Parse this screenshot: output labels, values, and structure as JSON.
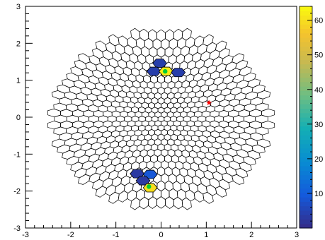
{
  "chart_data": {
    "type": "heatmap",
    "title": "",
    "xlabel": "",
    "ylabel": "",
    "xlim": [
      -3,
      3
    ],
    "ylim": [
      -3,
      3
    ],
    "x_ticks": [
      "-3",
      "-2",
      "-1",
      "0",
      "1",
      "2",
      "3"
    ],
    "y_ticks": [
      "-3",
      "-2",
      "-1",
      "0",
      "1",
      "2",
      "3"
    ],
    "colorbar": {
      "range": [
        0,
        64
      ],
      "ticks": [
        "10",
        "20",
        "30",
        "40",
        "50",
        "60"
      ],
      "placement": "right"
    },
    "grid": false,
    "cells": [
      {
        "x": -0.03,
        "y": 1.46,
        "value": 4
      },
      {
        "x": -0.16,
        "y": 1.24,
        "value": 4
      },
      {
        "x": 0.11,
        "y": 1.24,
        "value": 62
      },
      {
        "x": 0.38,
        "y": 1.21,
        "value": 4
      },
      {
        "x": -0.53,
        "y": -1.53,
        "value": 3
      },
      {
        "x": -0.24,
        "y": -1.55,
        "value": 9
      },
      {
        "x": -0.4,
        "y": -1.72,
        "value": 3
      },
      {
        "x": -0.24,
        "y": -1.91,
        "value": 60
      }
    ],
    "markers": [
      {
        "shape": "circle",
        "color": "#00cc33",
        "x": 0.09,
        "y": 1.24
      },
      {
        "shape": "circle",
        "color": "#00cc33",
        "x": -0.27,
        "y": -1.88
      },
      {
        "shape": "star",
        "color": "#ff0000",
        "x": 1.06,
        "y": 0.39
      }
    ]
  }
}
